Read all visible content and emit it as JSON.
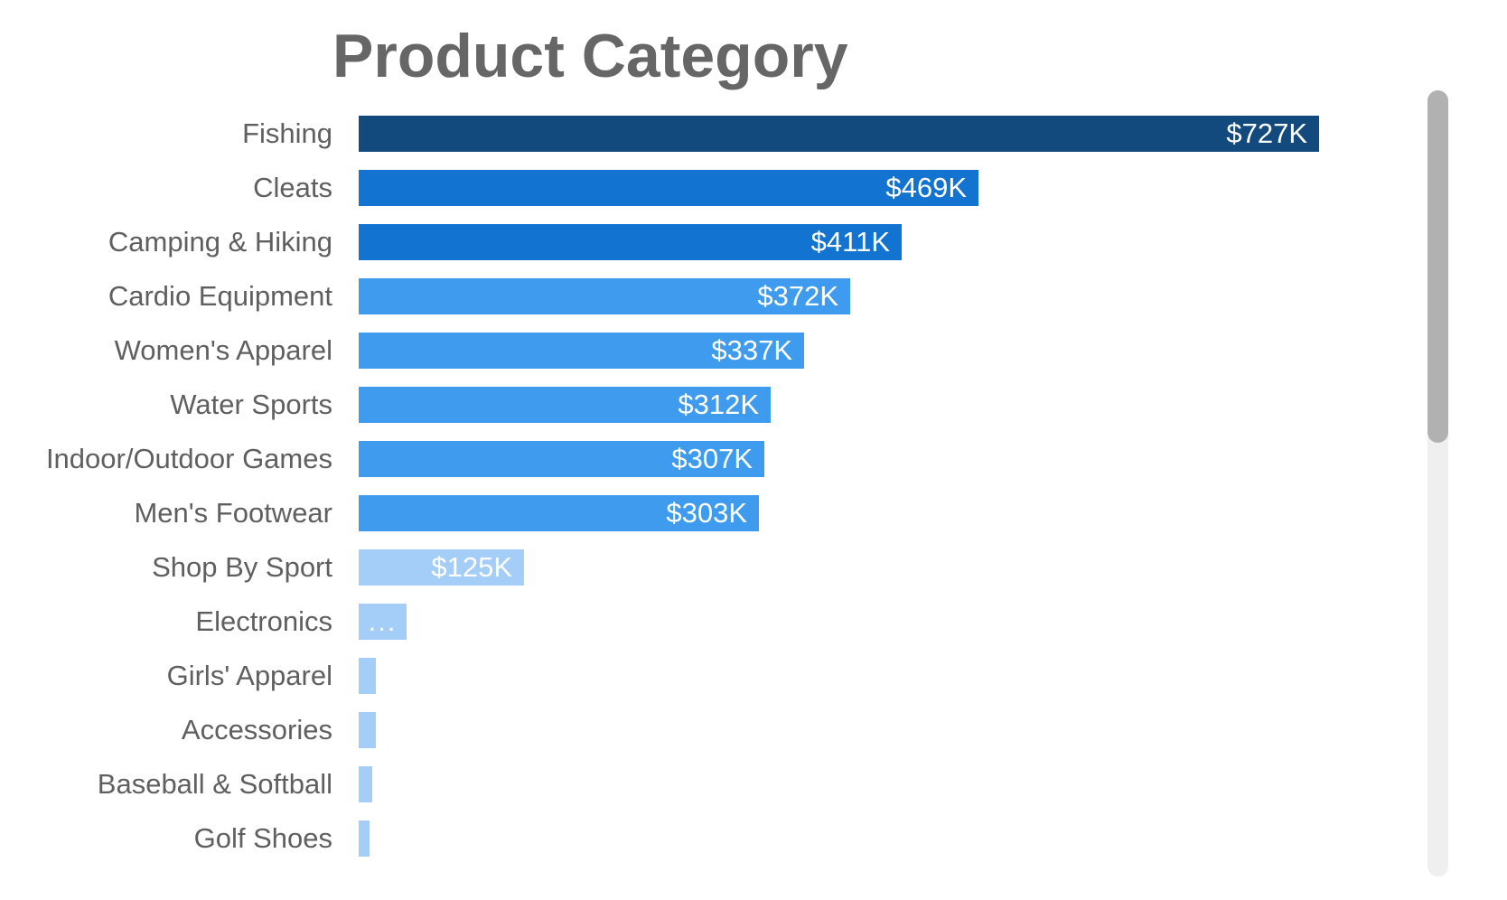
{
  "title": "Product Category",
  "chart_data": {
    "type": "bar",
    "orientation": "horizontal",
    "title": "Product Category",
    "categories": [
      "Fishing",
      "Cleats",
      "Camping & Hiking",
      "Cardio Equipment",
      "Women's Apparel",
      "Water Sports",
      "Indoor/Outdoor Games",
      "Men's Footwear",
      "Shop By Sport",
      "Electronics",
      "Girls' Apparel",
      "Accessories",
      "Baseball & Softball",
      "Golf Shoes"
    ],
    "values_k": [
      727,
      469,
      411,
      372,
      337,
      312,
      307,
      303,
      125,
      36,
      13,
      13,
      10,
      8
    ],
    "value_labels": [
      "$727K",
      "$469K",
      "$411K",
      "$372K",
      "$337K",
      "$312K",
      "$307K",
      "$303K",
      "$125K",
      "...",
      "",
      "",
      "",
      ""
    ],
    "bar_colors": [
      "#134A7D",
      "#1373D0",
      "#1373D0",
      "#3E9BED",
      "#3E9BED",
      "#3E9BED",
      "#3E9BED",
      "#3E9BED",
      "#A4CEF8",
      "#A4CEF8",
      "#A4CEF8",
      "#A4CEF8",
      "#A4CEF8",
      "#A4CEF8"
    ],
    "xlabel": "",
    "ylabel": "",
    "xlim_k": [
      0,
      760
    ],
    "grid": false,
    "legend": false,
    "value_axis_hidden": true,
    "value_label_color": "#FFFFFF",
    "category_label_color": "#5F5F5F",
    "title_color": "#666666"
  },
  "scrollbar": {
    "visible": true,
    "thumb_color": "#B1B1B1",
    "track_color": "#EFEFEF"
  }
}
